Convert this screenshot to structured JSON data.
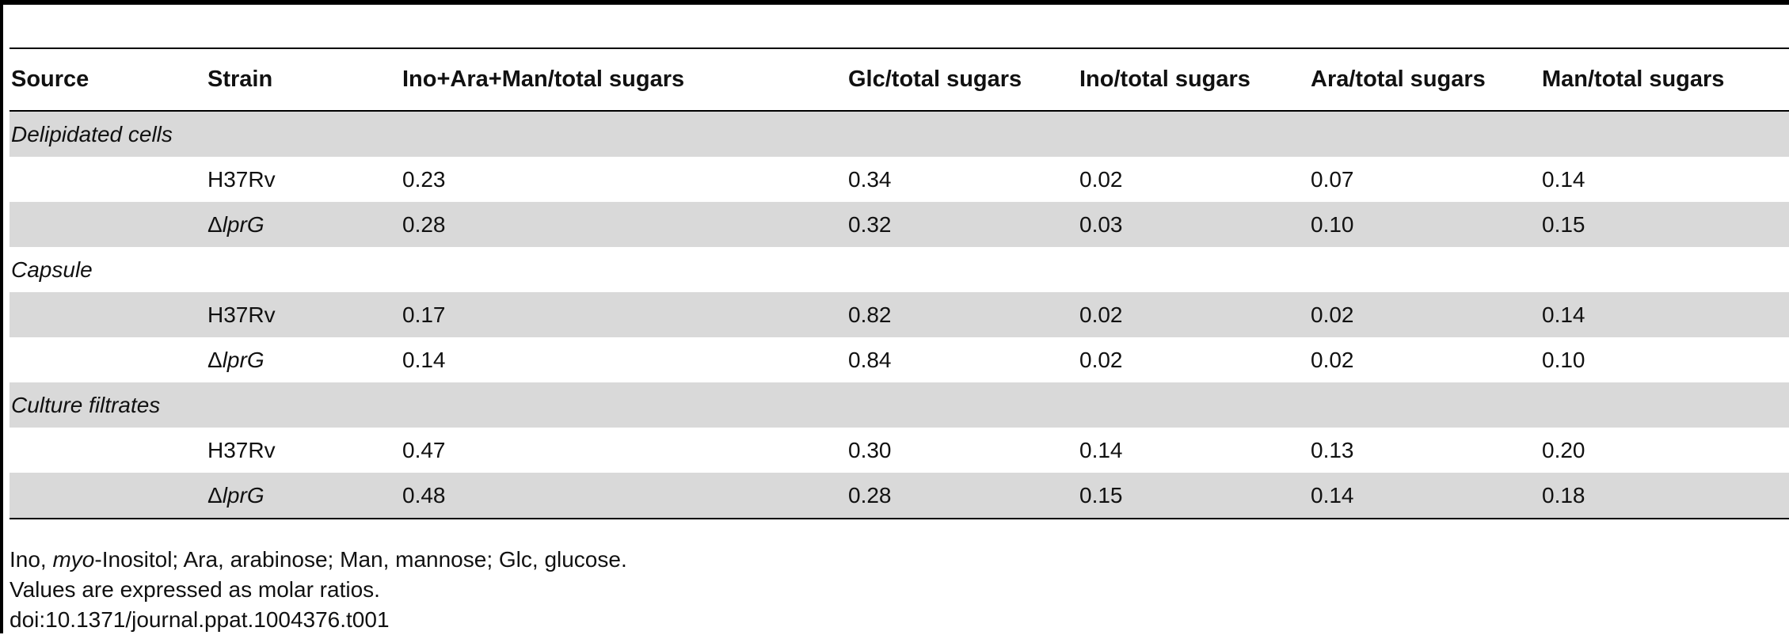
{
  "table": {
    "headers": [
      "Source",
      "Strain",
      "Ino+Ara+Man/total sugars",
      "Glc/total sugars",
      "Ino/total sugars",
      "Ara/total sugars",
      "Man/total sugars"
    ],
    "groups": [
      {
        "source": "Delipidated cells",
        "rows": [
          {
            "strain_prefix": "",
            "strain": "H37Rv",
            "values": [
              "0.23",
              "0.34",
              "0.02",
              "0.07",
              "0.14"
            ]
          },
          {
            "strain_prefix": "Δ",
            "strain": "lprG",
            "values": [
              "0.28",
              "0.32",
              "0.03",
              "0.10",
              "0.15"
            ]
          }
        ]
      },
      {
        "source": "Capsule",
        "rows": [
          {
            "strain_prefix": "",
            "strain": "H37Rv",
            "values": [
              "0.17",
              "0.82",
              "0.02",
              "0.02",
              "0.14"
            ]
          },
          {
            "strain_prefix": "Δ",
            "strain": "lprG",
            "values": [
              "0.14",
              "0.84",
              "0.02",
              "0.02",
              "0.10"
            ]
          }
        ]
      },
      {
        "source": "Culture filtrates",
        "rows": [
          {
            "strain_prefix": "",
            "strain": "H37Rv",
            "values": [
              "0.47",
              "0.30",
              "0.14",
              "0.13",
              "0.20"
            ]
          },
          {
            "strain_prefix": "Δ",
            "strain": "lprG",
            "values": [
              "0.48",
              "0.28",
              "0.15",
              "0.14",
              "0.18"
            ]
          }
        ]
      }
    ]
  },
  "footnotes": {
    "abbrev_prefix": "Ino, ",
    "abbrev_italic": "myo",
    "abbrev_rest": "-Inositol; Ara, arabinose; Man, mannose; Glc, glucose.",
    "note": "Values are expressed as molar ratios.",
    "doi": "doi:10.1371/journal.ppat.1004376.t001"
  }
}
